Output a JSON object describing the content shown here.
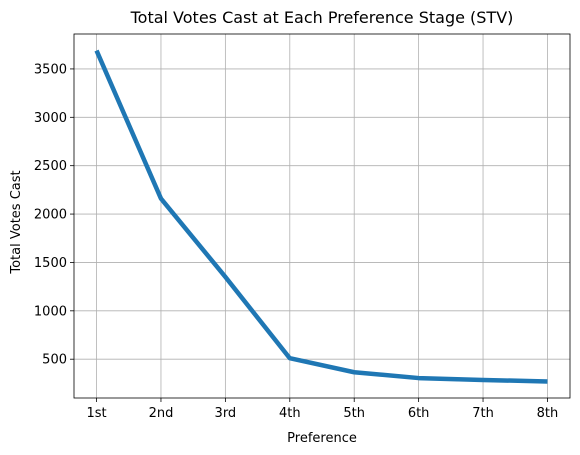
{
  "chart_data": {
    "type": "line",
    "title": "Total Votes Cast at Each Preference Stage (STV)",
    "xlabel": "Preference",
    "ylabel": "Total Votes Cast",
    "categories": [
      "1st",
      "2nd",
      "3rd",
      "4th",
      "5th",
      "6th",
      "7th",
      "8th"
    ],
    "series": [
      {
        "values": [
          3690,
          2160,
          1350,
          510,
          365,
          305,
          285,
          270
        ]
      }
    ],
    "yticks": [
      500,
      1000,
      1500,
      2000,
      2500,
      3000,
      3500
    ],
    "ylim": [
      99,
      3861
    ],
    "grid": true,
    "line_color": "#1f77b4"
  }
}
